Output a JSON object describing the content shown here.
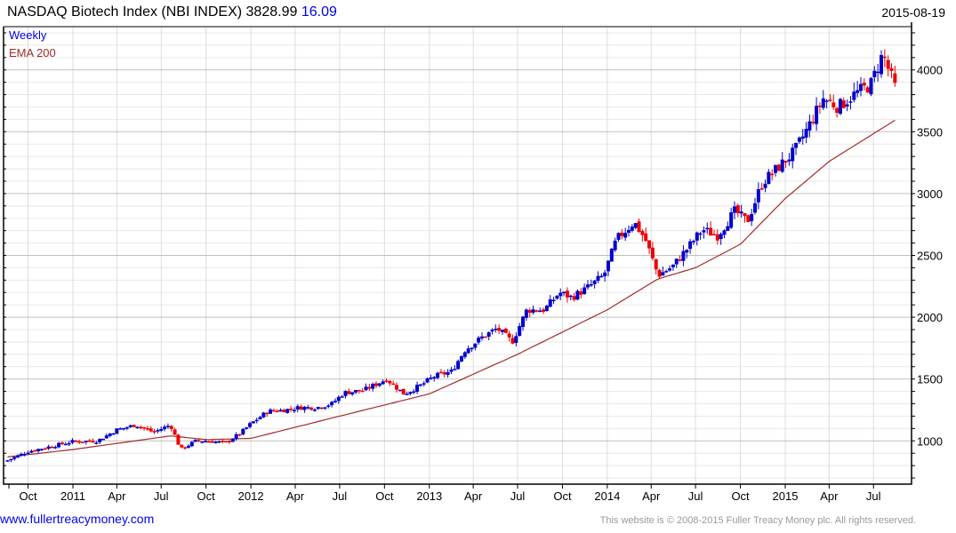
{
  "header": {
    "title": "NASDAQ Biotech Index (NBI INDEX) 3828.99",
    "change": "16.09",
    "date": "2015-08-19"
  },
  "legend": {
    "series": "Weekly",
    "ema": "EMA 200"
  },
  "footer": {
    "link": "www.fullertreacymoney.com",
    "copyright": "This website is © 2008-2015 Fuller Treacy Money plc. All rights reserved."
  },
  "colors": {
    "up": "#0000cc",
    "down": "#ee0000",
    "ema": "#a52a2a",
    "grid_major": "#c0c0c0",
    "grid_minor": "#e8e8e8"
  },
  "chart_data": {
    "type": "candlestick",
    "title": "NASDAQ Biotech Index (NBI INDEX)",
    "frequency": "weekly",
    "ylim": [
      650,
      4350
    ],
    "yticks": [
      1000,
      1500,
      2000,
      2500,
      3000,
      3500,
      4000
    ],
    "xticks": [
      {
        "date": "2010-10-01",
        "label": "Oct"
      },
      {
        "date": "2011-01-01",
        "label": "2011"
      },
      {
        "date": "2011-04-01",
        "label": "Apr"
      },
      {
        "date": "2011-07-01",
        "label": "Jul"
      },
      {
        "date": "2011-10-01",
        "label": "Oct"
      },
      {
        "date": "2012-01-01",
        "label": "2012"
      },
      {
        "date": "2012-04-01",
        "label": "Apr"
      },
      {
        "date": "2012-07-01",
        "label": "Jul"
      },
      {
        "date": "2012-10-01",
        "label": "Oct"
      },
      {
        "date": "2013-01-01",
        "label": "2013"
      },
      {
        "date": "2013-04-01",
        "label": "Apr"
      },
      {
        "date": "2013-07-01",
        "label": "Jul"
      },
      {
        "date": "2013-10-01",
        "label": "Oct"
      },
      {
        "date": "2014-01-01",
        "label": "2014"
      },
      {
        "date": "2014-04-01",
        "label": "Apr"
      },
      {
        "date": "2014-07-01",
        "label": "Jul"
      },
      {
        "date": "2014-10-01",
        "label": "Oct"
      },
      {
        "date": "2015-01-01",
        "label": "2015"
      },
      {
        "date": "2015-04-01",
        "label": "Apr"
      },
      {
        "date": "2015-07-01",
        "label": "Jul"
      }
    ],
    "close_anchors": [
      [
        "2010-08-20",
        843
      ],
      [
        "2010-10-01",
        915
      ],
      [
        "2010-11-10",
        950
      ],
      [
        "2011-01-01",
        995
      ],
      [
        "2011-02-20",
        1000
      ],
      [
        "2011-04-01",
        1090
      ],
      [
        "2011-05-10",
        1130
      ],
      [
        "2011-06-15",
        1070
      ],
      [
        "2011-07-20",
        1130
      ],
      [
        "2011-08-10",
        930
      ],
      [
        "2011-09-10",
        1000
      ],
      [
        "2011-10-01",
        1000
      ],
      [
        "2011-11-10",
        985
      ],
      [
        "2011-12-10",
        1060
      ],
      [
        "2012-01-01",
        1140
      ],
      [
        "2012-02-05",
        1240
      ],
      [
        "2012-03-10",
        1250
      ],
      [
        "2012-04-10",
        1270
      ],
      [
        "2012-05-15",
        1270
      ],
      [
        "2012-06-15",
        1300
      ],
      [
        "2012-07-10",
        1390
      ],
      [
        "2012-08-20",
        1410
      ],
      [
        "2012-09-20",
        1470
      ],
      [
        "2012-10-05",
        1500
      ],
      [
        "2012-11-10",
        1380
      ],
      [
        "2012-12-15",
        1450
      ],
      [
        "2013-01-10",
        1520
      ],
      [
        "2013-02-15",
        1560
      ],
      [
        "2013-03-15",
        1735
      ],
      [
        "2013-04-20",
        1840
      ],
      [
        "2013-05-20",
        1910
      ],
      [
        "2013-06-20",
        1800
      ],
      [
        "2013-07-20",
        2060
      ],
      [
        "2013-08-25",
        2060
      ],
      [
        "2013-09-25",
        2200
      ],
      [
        "2013-10-20",
        2160
      ],
      [
        "2013-11-20",
        2235
      ],
      [
        "2013-12-25",
        2340
      ],
      [
        "2014-01-20",
        2630
      ],
      [
        "2014-02-25",
        2770
      ],
      [
        "2014-03-20",
        2630
      ],
      [
        "2014-04-15",
        2340
      ],
      [
        "2014-05-15",
        2410
      ],
      [
        "2014-06-15",
        2560
      ],
      [
        "2014-07-15",
        2710
      ],
      [
        "2014-08-15",
        2660
      ],
      [
        "2014-09-20",
        2860
      ],
      [
        "2014-10-15",
        2770
      ],
      [
        "2014-11-15",
        3090
      ],
      [
        "2014-12-25",
        3240
      ],
      [
        "2015-01-20",
        3340
      ],
      [
        "2015-02-20",
        3560
      ],
      [
        "2015-03-20",
        3770
      ],
      [
        "2015-04-20",
        3700
      ],
      [
        "2015-05-25",
        3810
      ],
      [
        "2015-06-25",
        3880
      ],
      [
        "2015-07-20",
        4130
      ],
      [
        "2015-08-17",
        3829
      ]
    ],
    "ema200_anchors": [
      [
        "2010-08-20",
        870
      ],
      [
        "2011-01-01",
        930
      ],
      [
        "2011-07-20",
        1040
      ],
      [
        "2011-10-01",
        1010
      ],
      [
        "2012-01-01",
        1020
      ],
      [
        "2012-07-01",
        1200
      ],
      [
        "2013-01-01",
        1380
      ],
      [
        "2013-07-01",
        1700
      ],
      [
        "2014-01-01",
        2060
      ],
      [
        "2014-04-15",
        2310
      ],
      [
        "2014-07-01",
        2400
      ],
      [
        "2014-10-01",
        2590
      ],
      [
        "2015-01-01",
        2960
      ],
      [
        "2015-04-01",
        3260
      ],
      [
        "2015-08-17",
        3600
      ]
    ]
  }
}
